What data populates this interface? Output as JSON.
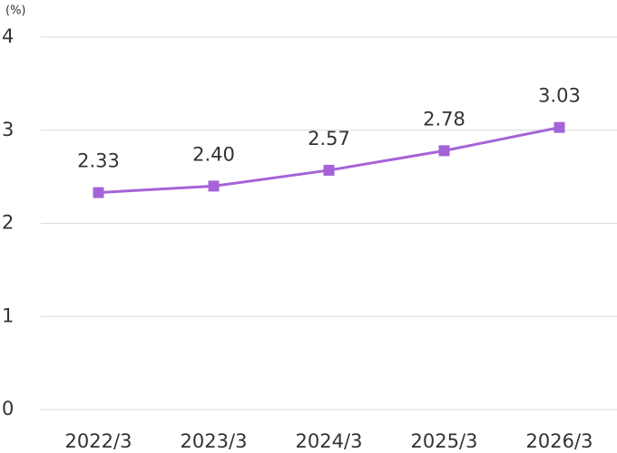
{
  "chart_data": {
    "type": "line",
    "y_axis_label": "(%)",
    "categories": [
      "2022/3",
      "2023/3",
      "2024/3",
      "2025/3",
      "2026/3"
    ],
    "series": [
      {
        "color": "#a463d8",
        "values": [
          2.33,
          2.4,
          2.57,
          2.78,
          3.03
        ],
        "value_labels": [
          "2.33",
          "2.40",
          "2.57",
          "2.78",
          "3.03"
        ]
      }
    ],
    "ylim": [
      0,
      4
    ],
    "yticks": [
      0,
      1,
      2,
      3,
      4
    ],
    "grid": true
  }
}
